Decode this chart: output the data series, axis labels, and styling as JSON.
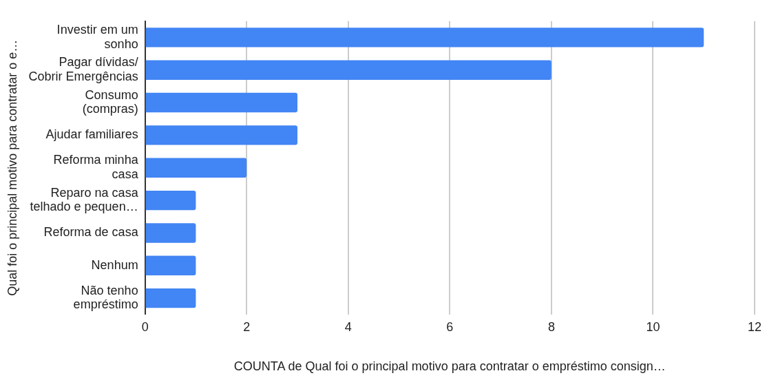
{
  "chart_data": {
    "type": "bar",
    "orientation": "horizontal",
    "categories": [
      "Investir em um\nsonho",
      "Pagar dívidas/\nCobrir Emergências",
      "Consumo\n(compras)",
      "Ajudar familiares",
      "Reforma minha\ncasa",
      "Reparo na casa\ntelhado e pequen…",
      "Reforma de casa",
      "Nenhum",
      "Não tenho\nempréstimo"
    ],
    "values": [
      11,
      8,
      3,
      3,
      2,
      1,
      1,
      1,
      1
    ],
    "color": "#4285f4",
    "xlim": [
      0,
      12
    ],
    "xticks": [
      0,
      2,
      4,
      6,
      8,
      10,
      12
    ],
    "xlabel": "COUNTA de Qual foi o principal motivo para contratar o empréstimo consign…",
    "ylabel": "Qual foi o principal motivo para contratar o e…",
    "grid": "x",
    "legend": false
  }
}
